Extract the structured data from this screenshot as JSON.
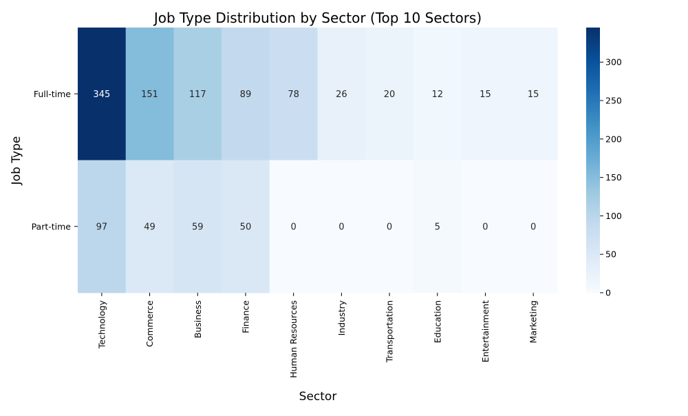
{
  "chart_data": {
    "type": "heatmap",
    "title": "Job Type Distribution by Sector (Top 10 Sectors)",
    "xlabel": "Sector",
    "ylabel": "Job Type",
    "x_categories": [
      "Technology",
      "Commerce",
      "Business",
      "Finance",
      "Human Resources",
      "Industry",
      "Transportation",
      "Education",
      "Entertainment",
      "Marketing"
    ],
    "y_categories": [
      "Full-time",
      "Part-time"
    ],
    "values": [
      [
        345,
        151,
        117,
        89,
        78,
        26,
        20,
        12,
        15,
        15
      ],
      [
        97,
        49,
        59,
        50,
        0,
        0,
        0,
        5,
        0,
        0
      ]
    ],
    "colorbar": {
      "range": [
        0,
        345
      ],
      "ticks": [
        0,
        50,
        100,
        150,
        200,
        250,
        300
      ],
      "colormap": "Blues"
    },
    "grid": false
  }
}
